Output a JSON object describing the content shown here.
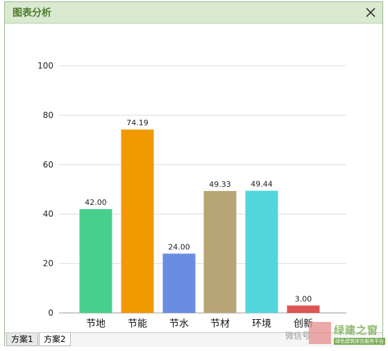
{
  "window": {
    "title": "图表分析",
    "close_icon": "close-icon"
  },
  "chart_data": {
    "type": "bar",
    "categories": [
      "节地",
      "节能",
      "节水",
      "节材",
      "环境",
      "创新"
    ],
    "values": [
      42.0,
      74.19,
      24.0,
      49.33,
      49.44,
      3.0
    ],
    "value_labels": [
      "42.00",
      "74.19",
      "24.00",
      "49.33",
      "49.44",
      "3.00"
    ],
    "colors": [
      "#47d08d",
      "#f09a00",
      "#6a8de3",
      "#b8a575",
      "#52d6dc",
      "#de5454"
    ],
    "yticks": [
      0,
      20,
      40,
      60,
      80,
      100
    ],
    "ylim": [
      0,
      100
    ],
    "grid": true,
    "title": "",
    "xlabel": "",
    "ylabel": ""
  },
  "tabs": [
    {
      "label": "方案1"
    },
    {
      "label": "方案2"
    }
  ],
  "watermark": {
    "text": "微信号",
    "brand": "绿建之窗",
    "subtitle": "绿色建筑综合服务平台"
  }
}
